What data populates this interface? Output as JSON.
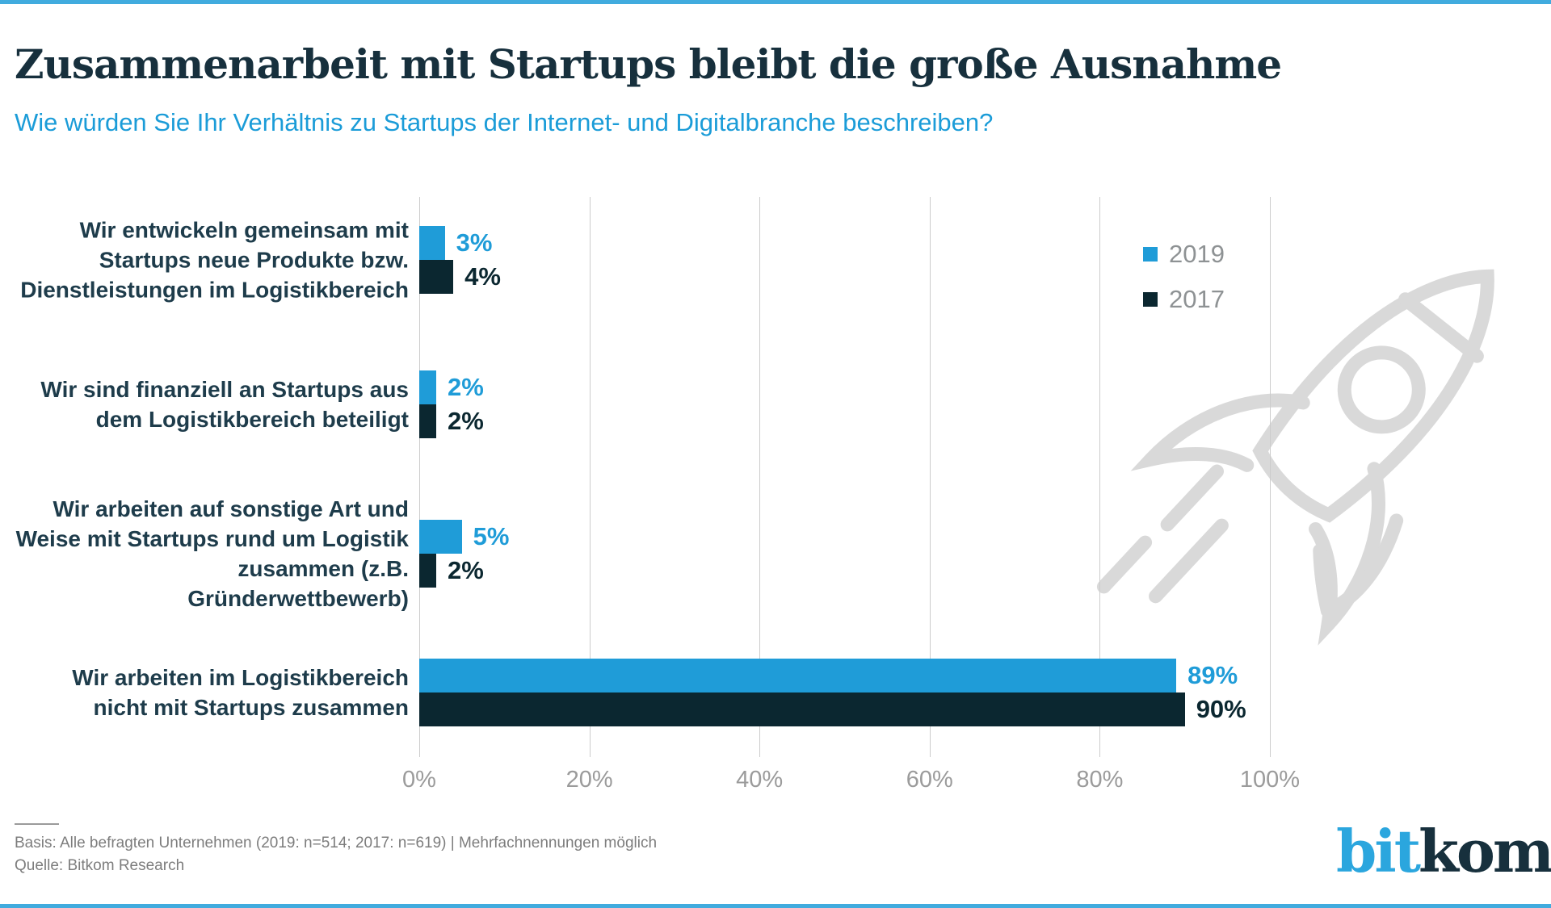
{
  "chart_data": {
    "type": "bar",
    "orientation": "horizontal",
    "title": "Zusammenarbeit mit Startups bleibt die große Ausnahme",
    "subtitle": "Wie würden Sie Ihr Verhältnis zu Startups der Internet- und Digitalbranche beschreiben?",
    "categories": [
      "Wir entwickeln gemeinsam mit\nStartups neue Produkte bzw.\nDienstleistungen im Logistikbereich",
      "Wir sind finanziell an Startups aus\ndem Logistikbereich beteiligt",
      "Wir arbeiten auf sonstige Art und\nWeise mit Startups rund um Logistik\nzusammen (z.B. Gründerwettbewerb)",
      "Wir arbeiten im Logistikbereich\nnicht mit Startups zusammen"
    ],
    "series": [
      {
        "name": "2019",
        "color": "#1f9cd8",
        "values": [
          3,
          2,
          5,
          89
        ]
      },
      {
        "name": "2017",
        "color": "#0b2730",
        "values": [
          4,
          2,
          2,
          90
        ]
      }
    ],
    "value_suffix": "%",
    "x_ticks": [
      "0%",
      "20%",
      "40%",
      "60%",
      "80%",
      "100%"
    ],
    "xlim": [
      0,
      100
    ],
    "grid": true,
    "legend_position": "top-right"
  },
  "legend": {
    "items": [
      {
        "label": "2019",
        "color": "#1f9cd8"
      },
      {
        "label": "2017",
        "color": "#0b2730"
      }
    ]
  },
  "footer": {
    "basis": "Basis: Alle befragten Unternehmen (2019: n=514; 2017: n=619) | Mehrfachnennungen möglich",
    "source": "Quelle: Bitkom Research"
  },
  "logo": {
    "bit": "bit",
    "kom": "kom"
  },
  "icons": {
    "watermark": "rocket-icon"
  },
  "colors": {
    "bar_2019": "#1f9cd8",
    "bar_2017": "#0b2730",
    "title_text": "#17303d",
    "subtitle_text": "#1b9cd8",
    "category_text": "#1e3c4b",
    "axis_text": "#9b9b9b",
    "legend_text": "#8e9294",
    "gridline": "#cccccc",
    "footer_text": "#7d7d7d",
    "watermark": "#d9d9d9",
    "border_accent": "#41abde",
    "logo_bit": "#2ba6de",
    "logo_kom": "#17303d"
  }
}
